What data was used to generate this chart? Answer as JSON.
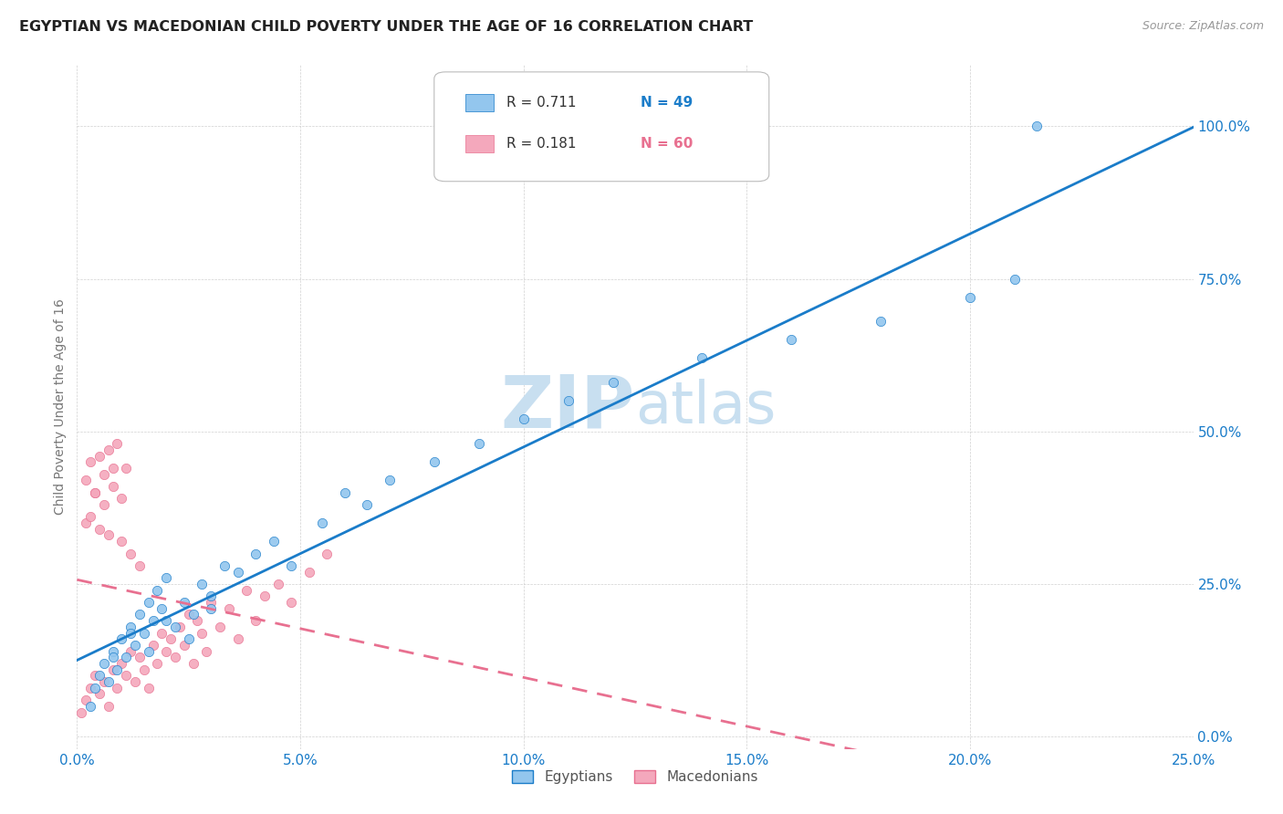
{
  "title": "EGYPTIAN VS MACEDONIAN CHILD POVERTY UNDER THE AGE OF 16 CORRELATION CHART",
  "source": "Source: ZipAtlas.com",
  "ylabel": "Child Poverty Under the Age of 16",
  "xlim": [
    0.0,
    0.25
  ],
  "ylim": [
    -0.02,
    1.1
  ],
  "xticks": [
    0.0,
    0.05,
    0.1,
    0.15,
    0.2,
    0.25
  ],
  "xtick_labels": [
    "0.0%",
    "5.0%",
    "10.0%",
    "15.0%",
    "20.0%",
    "25.0%"
  ],
  "yticks": [
    0.0,
    0.25,
    0.5,
    0.75,
    1.0
  ],
  "ytick_labels": [
    "0.0%",
    "25.0%",
    "50.0%",
    "75.0%",
    "100.0%"
  ],
  "legend_R1": "R = 0.711",
  "legend_N1": "N = 49",
  "legend_R2": "R = 0.181",
  "legend_N2": "N = 60",
  "legend_label1": "Egyptians",
  "legend_label2": "Macedonians",
  "color_egyptian": "#93C6EE",
  "color_macedonian": "#F4A8BC",
  "color_trend_egyptian": "#1A7CC9",
  "color_trend_macedonian": "#E87090",
  "background_color": "#FFFFFF",
  "watermark_zip": "ZIP",
  "watermark_atlas": "atlas",
  "watermark_color_zip": "#C8DFF0",
  "watermark_color_atlas": "#C8DFF0",
  "egyptian_x": [
    0.003,
    0.004,
    0.005,
    0.006,
    0.007,
    0.008,
    0.009,
    0.01,
    0.011,
    0.012,
    0.013,
    0.014,
    0.015,
    0.016,
    0.017,
    0.018,
    0.019,
    0.02,
    0.022,
    0.024,
    0.026,
    0.028,
    0.03,
    0.033,
    0.036,
    0.04,
    0.044,
    0.048,
    0.055,
    0.06,
    0.065,
    0.07,
    0.08,
    0.09,
    0.1,
    0.11,
    0.12,
    0.14,
    0.16,
    0.18,
    0.2,
    0.21,
    0.215,
    0.008,
    0.012,
    0.016,
    0.02,
    0.025,
    0.03
  ],
  "egyptian_y": [
    0.05,
    0.08,
    0.1,
    0.12,
    0.09,
    0.14,
    0.11,
    0.16,
    0.13,
    0.18,
    0.15,
    0.2,
    0.17,
    0.22,
    0.19,
    0.24,
    0.21,
    0.26,
    0.18,
    0.22,
    0.2,
    0.25,
    0.23,
    0.28,
    0.27,
    0.3,
    0.32,
    0.28,
    0.35,
    0.4,
    0.38,
    0.42,
    0.45,
    0.48,
    0.52,
    0.55,
    0.58,
    0.62,
    0.65,
    0.68,
    0.72,
    0.75,
    1.0,
    0.13,
    0.17,
    0.14,
    0.19,
    0.16,
    0.21
  ],
  "macedonian_x": [
    0.001,
    0.002,
    0.003,
    0.004,
    0.005,
    0.006,
    0.007,
    0.008,
    0.009,
    0.01,
    0.011,
    0.012,
    0.013,
    0.014,
    0.015,
    0.016,
    0.017,
    0.018,
    0.019,
    0.02,
    0.021,
    0.022,
    0.023,
    0.024,
    0.025,
    0.026,
    0.027,
    0.028,
    0.029,
    0.03,
    0.032,
    0.034,
    0.036,
    0.038,
    0.04,
    0.042,
    0.045,
    0.048,
    0.052,
    0.056,
    0.002,
    0.004,
    0.006,
    0.008,
    0.01,
    0.012,
    0.014,
    0.003,
    0.005,
    0.007,
    0.002,
    0.003,
    0.004,
    0.005,
    0.006,
    0.007,
    0.008,
    0.009,
    0.01,
    0.011
  ],
  "macedonian_y": [
    0.04,
    0.06,
    0.08,
    0.1,
    0.07,
    0.09,
    0.05,
    0.11,
    0.08,
    0.12,
    0.1,
    0.14,
    0.09,
    0.13,
    0.11,
    0.08,
    0.15,
    0.12,
    0.17,
    0.14,
    0.16,
    0.13,
    0.18,
    0.15,
    0.2,
    0.12,
    0.19,
    0.17,
    0.14,
    0.22,
    0.18,
    0.21,
    0.16,
    0.24,
    0.19,
    0.23,
    0.25,
    0.22,
    0.27,
    0.3,
    0.35,
    0.4,
    0.38,
    0.44,
    0.32,
    0.3,
    0.28,
    0.36,
    0.34,
    0.33,
    0.42,
    0.45,
    0.4,
    0.46,
    0.43,
    0.47,
    0.41,
    0.48,
    0.39,
    0.44
  ]
}
